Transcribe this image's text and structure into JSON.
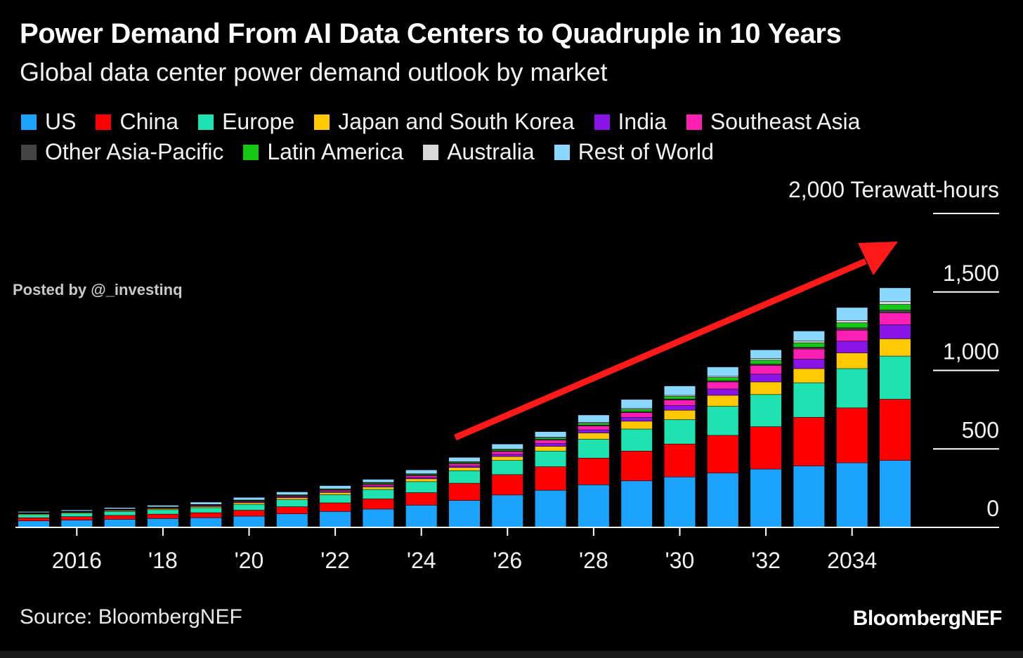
{
  "header": {
    "title": "Power Demand From AI Data Centers to Quadruple in 10 Years",
    "subtitle": "Global data center power demand outlook by market"
  },
  "watermark": "Posted by @_investinq",
  "footer": {
    "source": "Source: BloombergNEF",
    "brand": "BloombergNEF"
  },
  "colors": {
    "US": "#1aa3ff",
    "China": "#ff0000",
    "Europe": "#1ee3b0",
    "Japan and South Korea": "#ffc800",
    "India": "#8a14e6",
    "Southeast Asia": "#ff1fb3",
    "Other Asia-Pacific": "#444444",
    "Latin America": "#14c814",
    "Australia": "#d9d9d9",
    "Rest of World": "#8ad8ff",
    "arrow": "#ff1a1a"
  },
  "chart_data": {
    "type": "bar",
    "stacked": true,
    "title": "Power Demand From AI Data Centers to Quadruple in 10 Years",
    "subtitle": "Global data center power demand outlook by market",
    "ylabel": "2,000 Terawatt-hours",
    "y_axis_side": "right",
    "ylim": [
      0,
      2000
    ],
    "yticks": [
      0,
      500,
      1000,
      1500,
      2000
    ],
    "ytick_labels": [
      "0",
      "500",
      "1,000",
      "1,500",
      "2,000 Terawatt-hours"
    ],
    "categories": [
      "2015",
      "2016",
      "2017",
      "2018",
      "2019",
      "2020",
      "2021",
      "2022",
      "2023",
      "2024",
      "2025",
      "2026",
      "2027",
      "2028",
      "2029",
      "2030",
      "2031",
      "2032",
      "2033",
      "2034",
      "2035"
    ],
    "xtick_labels": [
      {
        "category": "2016",
        "label": "2016"
      },
      {
        "category": "2018",
        "label": "'18"
      },
      {
        "category": "2020",
        "label": "'20"
      },
      {
        "category": "2022",
        "label": "'22"
      },
      {
        "category": "2024",
        "label": "'24"
      },
      {
        "category": "2026",
        "label": "'26"
      },
      {
        "category": "2028",
        "label": "'28"
      },
      {
        "category": "2030",
        "label": "'30"
      },
      {
        "category": "2032",
        "label": "'32"
      },
      {
        "category": "2034",
        "label": "2034"
      }
    ],
    "legend_placement": "top",
    "grid": false,
    "series": [
      {
        "name": "US",
        "values": [
          40,
          45,
          50,
          55,
          60,
          70,
          85,
          100,
          115,
          140,
          170,
          205,
          235,
          270,
          295,
          320,
          345,
          370,
          390,
          410,
          425
        ]
      },
      {
        "name": "China",
        "values": [
          20,
          22,
          25,
          28,
          32,
          38,
          45,
          55,
          65,
          80,
          110,
          130,
          150,
          170,
          190,
          210,
          240,
          270,
          310,
          350,
          390
        ]
      },
      {
        "name": "Europe",
        "values": [
          20,
          22,
          25,
          28,
          32,
          38,
          45,
          52,
          60,
          70,
          80,
          90,
          100,
          120,
          140,
          155,
          185,
          205,
          220,
          250,
          275
        ]
      },
      {
        "name": "Japan and South Korea",
        "values": [
          5,
          5,
          6,
          7,
          8,
          10,
          12,
          14,
          16,
          18,
          20,
          25,
          30,
          40,
          50,
          60,
          70,
          80,
          90,
          100,
          110
        ]
      },
      {
        "name": "India",
        "values": [
          2,
          2,
          3,
          3,
          4,
          4,
          5,
          6,
          7,
          8,
          10,
          14,
          18,
          20,
          25,
          30,
          40,
          50,
          60,
          75,
          90
        ]
      },
      {
        "name": "Southeast Asia",
        "values": [
          2,
          2,
          3,
          3,
          4,
          5,
          6,
          8,
          10,
          12,
          14,
          18,
          22,
          25,
          30,
          35,
          45,
          55,
          65,
          70,
          75
        ]
      },
      {
        "name": "Other Asia-Pacific",
        "values": [
          1,
          1,
          1,
          1,
          1,
          2,
          2,
          2,
          3,
          3,
          3,
          4,
          4,
          5,
          6,
          7,
          8,
          10,
          12,
          15,
          18
        ]
      },
      {
        "name": "Latin America",
        "values": [
          2,
          2,
          2,
          3,
          3,
          4,
          4,
          5,
          6,
          6,
          7,
          8,
          10,
          12,
          14,
          16,
          20,
          24,
          28,
          32,
          36
        ]
      },
      {
        "name": "Australia",
        "values": [
          1,
          1,
          1,
          1,
          1,
          2,
          2,
          2,
          3,
          3,
          3,
          4,
          4,
          5,
          6,
          7,
          8,
          10,
          12,
          15,
          18
        ]
      },
      {
        "name": "Rest of World",
        "values": [
          7,
          8,
          9,
          11,
          15,
          17,
          19,
          21,
          20,
          25,
          28,
          32,
          36,
          48,
          58,
          60,
          60,
          56,
          63,
          83,
          88
        ]
      }
    ]
  }
}
